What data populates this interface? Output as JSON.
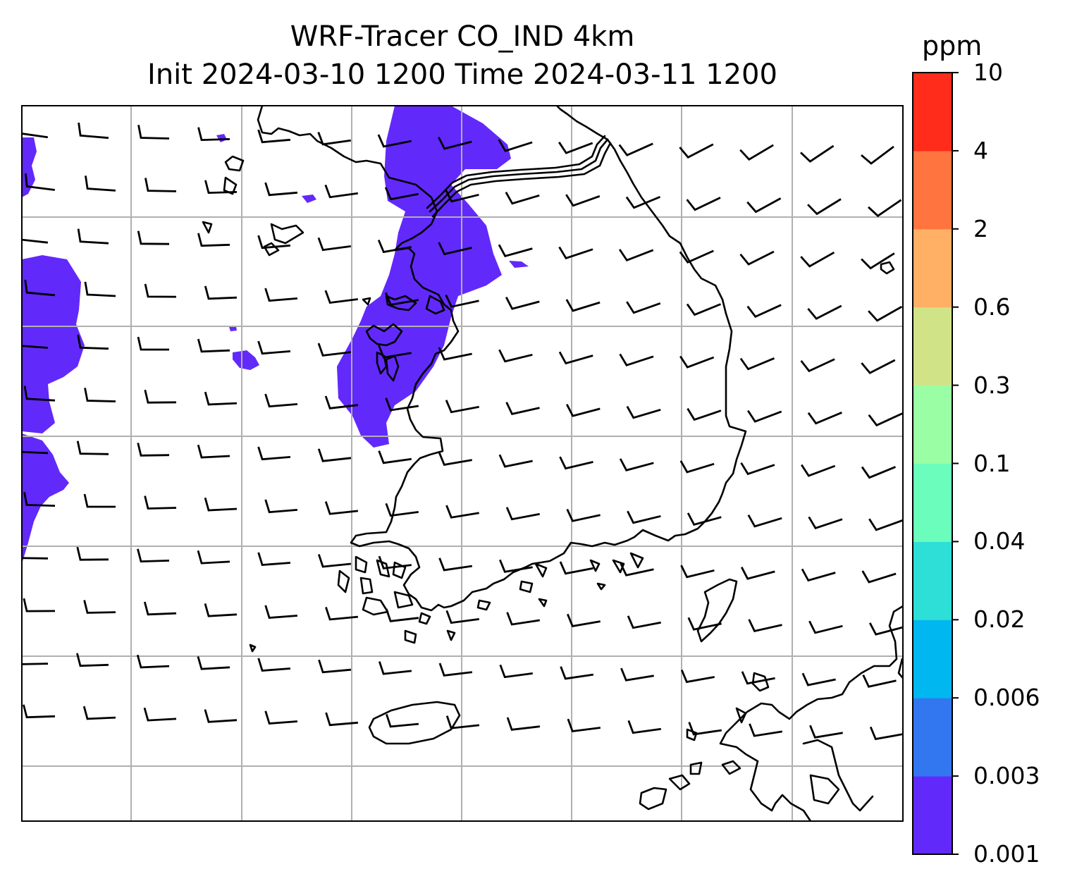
{
  "title_line1": "WRF-Tracer CO_IND 4km",
  "title_line2": "Init 2024-03-10 1200 Time 2024-03-11 1200",
  "colorbar": {
    "unit": "ppm",
    "levels": [
      "0.001",
      "0.003",
      "0.006",
      "0.02",
      "0.04",
      "0.1",
      "0.3",
      "0.6",
      "2",
      "4",
      "10"
    ],
    "colors": [
      "#6229fb",
      "#3277f0",
      "#01b7ef",
      "#2edfd7",
      "#6afdbc",
      "#9afea5",
      "#d1e387",
      "#ffb065",
      "#ff743f",
      "#ff2b1b"
    ]
  },
  "map": {
    "shaded_color": "#6229fb",
    "gridline_color": "#b0b0b0",
    "coastline_color": "#000000",
    "gridlines": true,
    "wind_barbs": true
  }
}
